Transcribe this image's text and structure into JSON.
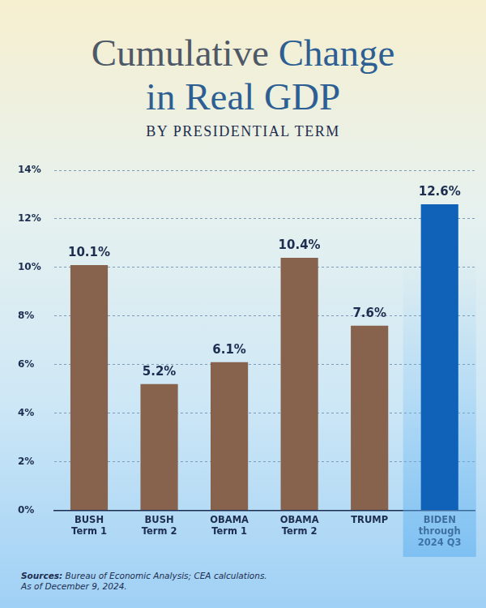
{
  "chart_data": {
    "type": "bar",
    "title": "Cumulative Change in Real GDP",
    "subtitle": "BY PRESIDENTIAL TERM",
    "categories": [
      [
        "BUSH",
        "Term 1"
      ],
      [
        "BUSH",
        "Term 2"
      ],
      [
        "OBAMA",
        "Term 1"
      ],
      [
        "OBAMA",
        "Term 2"
      ],
      [
        "TRUMP"
      ],
      [
        "BIDEN",
        "through",
        "2024 Q3"
      ]
    ],
    "values": [
      10.1,
      5.2,
      6.1,
      10.4,
      7.6,
      12.6
    ],
    "value_labels": [
      "10.1%",
      "5.2%",
      "6.1%",
      "10.4%",
      "7.6%",
      "12.6%"
    ],
    "colors": [
      "#87634e",
      "#87634e",
      "#87634e",
      "#87634e",
      "#87634e",
      "#0f62b8"
    ],
    "ylim": [
      0,
      14
    ],
    "yticks": [
      {
        "value": 0,
        "label": "0%"
      },
      {
        "value": 2,
        "label": "2%"
      },
      {
        "value": 4,
        "label": "4%"
      },
      {
        "value": 6,
        "label": "6%"
      },
      {
        "value": 8,
        "label": "8%"
      },
      {
        "value": 10,
        "label": "10%"
      },
      {
        "value": 12,
        "label": "12%"
      },
      {
        "value": 14,
        "label": "14%"
      }
    ],
    "grid": true,
    "data_labels": true,
    "annotations": [
      "Sources: Bureau of Economic Analysis; CEA calculations.",
      "As of December 9, 2024."
    ]
  }
}
